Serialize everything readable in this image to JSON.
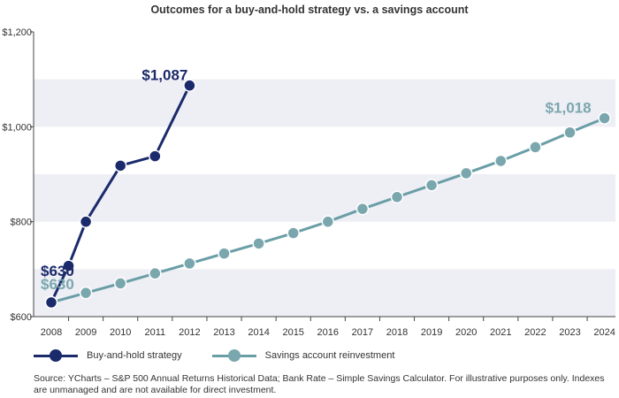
{
  "chart_data": {
    "type": "line",
    "title": "Outcomes for a buy-and-hold strategy vs. a savings account",
    "xlabel": "",
    "ylabel": "",
    "categories": [
      "2008",
      "2009",
      "2010",
      "2011",
      "2012",
      "2013",
      "2014",
      "2015",
      "2016",
      "2017",
      "2018",
      "2019",
      "2020",
      "2021",
      "2022",
      "2023",
      "2024"
    ],
    "y_ticks": [
      "$600",
      "$800",
      "$1,000",
      "$1,200"
    ],
    "ylim": [
      600,
      1200
    ],
    "grid": "alternating horizontal bands",
    "legend_position": "bottom-left",
    "series": [
      {
        "name": "Buy-and-hold strategy",
        "color": "#1b2a6b",
        "points": [
          {
            "x": 2008.0,
            "y": 630
          },
          {
            "x": 2008.5,
            "y": 707
          },
          {
            "x": 2009.0,
            "y": 800
          },
          {
            "x": 2010.0,
            "y": 918
          },
          {
            "x": 2011.0,
            "y": 938
          },
          {
            "x": 2012.0,
            "y": 1087
          }
        ]
      },
      {
        "name": "Savings account reinvestment",
        "color": "#6a9ea6",
        "marker_color": "#7aa7ae",
        "points": [
          {
            "x": 2008,
            "y": 630
          },
          {
            "x": 2009,
            "y": 650
          },
          {
            "x": 2010,
            "y": 670
          },
          {
            "x": 2011,
            "y": 691
          },
          {
            "x": 2012,
            "y": 712
          },
          {
            "x": 2013,
            "y": 733
          },
          {
            "x": 2014,
            "y": 754
          },
          {
            "x": 2015,
            "y": 776
          },
          {
            "x": 2016,
            "y": 800
          },
          {
            "x": 2017,
            "y": 827
          },
          {
            "x": 2018,
            "y": 852
          },
          {
            "x": 2019,
            "y": 877
          },
          {
            "x": 2020,
            "y": 902
          },
          {
            "x": 2021,
            "y": 928
          },
          {
            "x": 2022,
            "y": 957
          },
          {
            "x": 2023,
            "y": 988
          },
          {
            "x": 2024,
            "y": 1018
          }
        ]
      }
    ],
    "annotations": [
      {
        "text": "$1,087",
        "series": 0,
        "anchor": "end"
      },
      {
        "text": "$630",
        "series": 0,
        "anchor": "start"
      },
      {
        "text": "$630",
        "series": 1,
        "anchor": "start"
      },
      {
        "text": "$1,018",
        "series": 1,
        "anchor": "end"
      }
    ],
    "band_color": "#eeeef5"
  },
  "legend": {
    "items": [
      "Buy-and-hold strategy",
      "Savings account reinvestment"
    ]
  },
  "source_note": "Source: YCharts – S&P 500 Annual Returns Historical Data; Bank Rate – Simple Savings Calculator. For illustrative purposes only. Indexes are unmanaged and are not available for direct investment."
}
